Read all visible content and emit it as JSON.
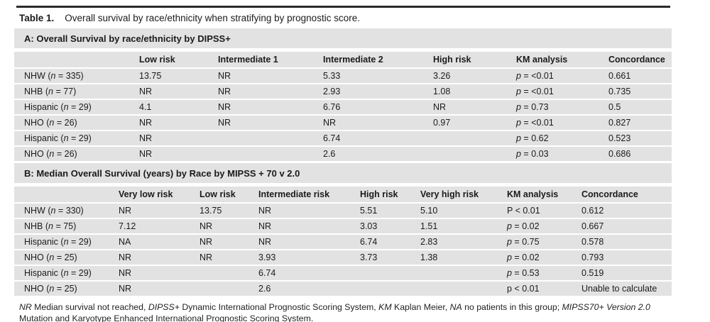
{
  "title": {
    "label": "Table 1.",
    "text": "Overall survival by race/ethnicity when stratifying by prognostic score."
  },
  "colors": {
    "row_background": "#e2e2e2",
    "rule": "#2b2b2b",
    "text": "#1b1b1b"
  },
  "section_a": {
    "header": "A: Overall Survival by race/ethnicity by DIPSS+",
    "columns": [
      "",
      "Low risk",
      "Intermediate 1",
      "Intermediate 2",
      "High risk",
      "KM analysis",
      "Concordance"
    ],
    "rows": [
      {
        "label": "NHW (n = 335)",
        "cells": [
          "13.75",
          "NR",
          "5.33",
          "3.26",
          "p = <0.01",
          "0.661"
        ]
      },
      {
        "label": "NHB (n = 77)",
        "cells": [
          "NR",
          "NR",
          "2.93",
          "1.08",
          "p = <0.01",
          "0.735"
        ]
      },
      {
        "label": "Hispanic (n = 29)",
        "cells": [
          "4.1",
          "NR",
          "6.76",
          "NR",
          "p = 0.73",
          "0.5"
        ]
      },
      {
        "label": "NHO (n = 26)",
        "cells": [
          "NR",
          "NR",
          "NR",
          "0.97",
          "p = <0.01",
          "0.827"
        ]
      },
      {
        "label": "Hispanic (n = 29)",
        "cells": [
          "NR",
          "",
          "6.74",
          "",
          "p = 0.62",
          "0.523"
        ]
      },
      {
        "label": "NHO (n = 26)",
        "cells": [
          "NR",
          "",
          "2.6",
          "",
          "p = 0.03",
          "0.686"
        ]
      }
    ]
  },
  "section_b": {
    "header": "B: Median Overall Survival (years) by Race by MIPSS + 70 v 2.0",
    "columns": [
      "",
      "Very low risk",
      "Low risk",
      "Intermediate risk",
      "High risk",
      "Very high risk",
      "KM analysis",
      "Concordance"
    ],
    "rows": [
      {
        "label": "NHW (n = 330)",
        "cells": [
          "NR",
          "13.75",
          "NR",
          "5.51",
          "5.10",
          "P < 0.01",
          "0.612"
        ]
      },
      {
        "label": "NHB (n = 75)",
        "cells": [
          "7.12",
          "NR",
          "NR",
          "3.03",
          "1.51",
          "p = 0.02",
          "0.667"
        ]
      },
      {
        "label": "Hispanic (n = 29)",
        "cells": [
          "NA",
          "NR",
          "NR",
          "6.74",
          "2.83",
          "p = 0.75",
          "0.578"
        ]
      },
      {
        "label": "NHO (n = 25)",
        "cells": [
          "NR",
          "NR",
          "3.93",
          "3.73",
          "1.38",
          "p = 0.02",
          "0.793"
        ]
      },
      {
        "label": "Hispanic (n = 29)",
        "cells": [
          "NR",
          "",
          "6.74",
          "",
          "",
          "p = 0.53",
          "0.519"
        ]
      },
      {
        "label": "NHO (n = 25)",
        "cells": [
          "NR",
          "",
          "2.6",
          "",
          "",
          "p < 0.01",
          "Unable to calculate"
        ]
      }
    ]
  },
  "footnote": {
    "segments": [
      {
        "text": "NR",
        "italic": true
      },
      {
        "text": " Median survival not reached, ",
        "italic": false
      },
      {
        "text": "DIPSS+",
        "italic": true
      },
      {
        "text": " Dynamic International Prognostic Scoring System, ",
        "italic": false
      },
      {
        "text": "KM",
        "italic": true
      },
      {
        "text": " Kaplan Meier, ",
        "italic": false
      },
      {
        "text": "NA",
        "italic": true
      },
      {
        "text": " no patients in this group; ",
        "italic": false
      },
      {
        "text": "MIPSS70+ Version 2.0",
        "italic": true
      },
      {
        "text": " Mutation and Karyotype Enhanced International Prognostic Scoring System.",
        "italic": false
      }
    ]
  }
}
